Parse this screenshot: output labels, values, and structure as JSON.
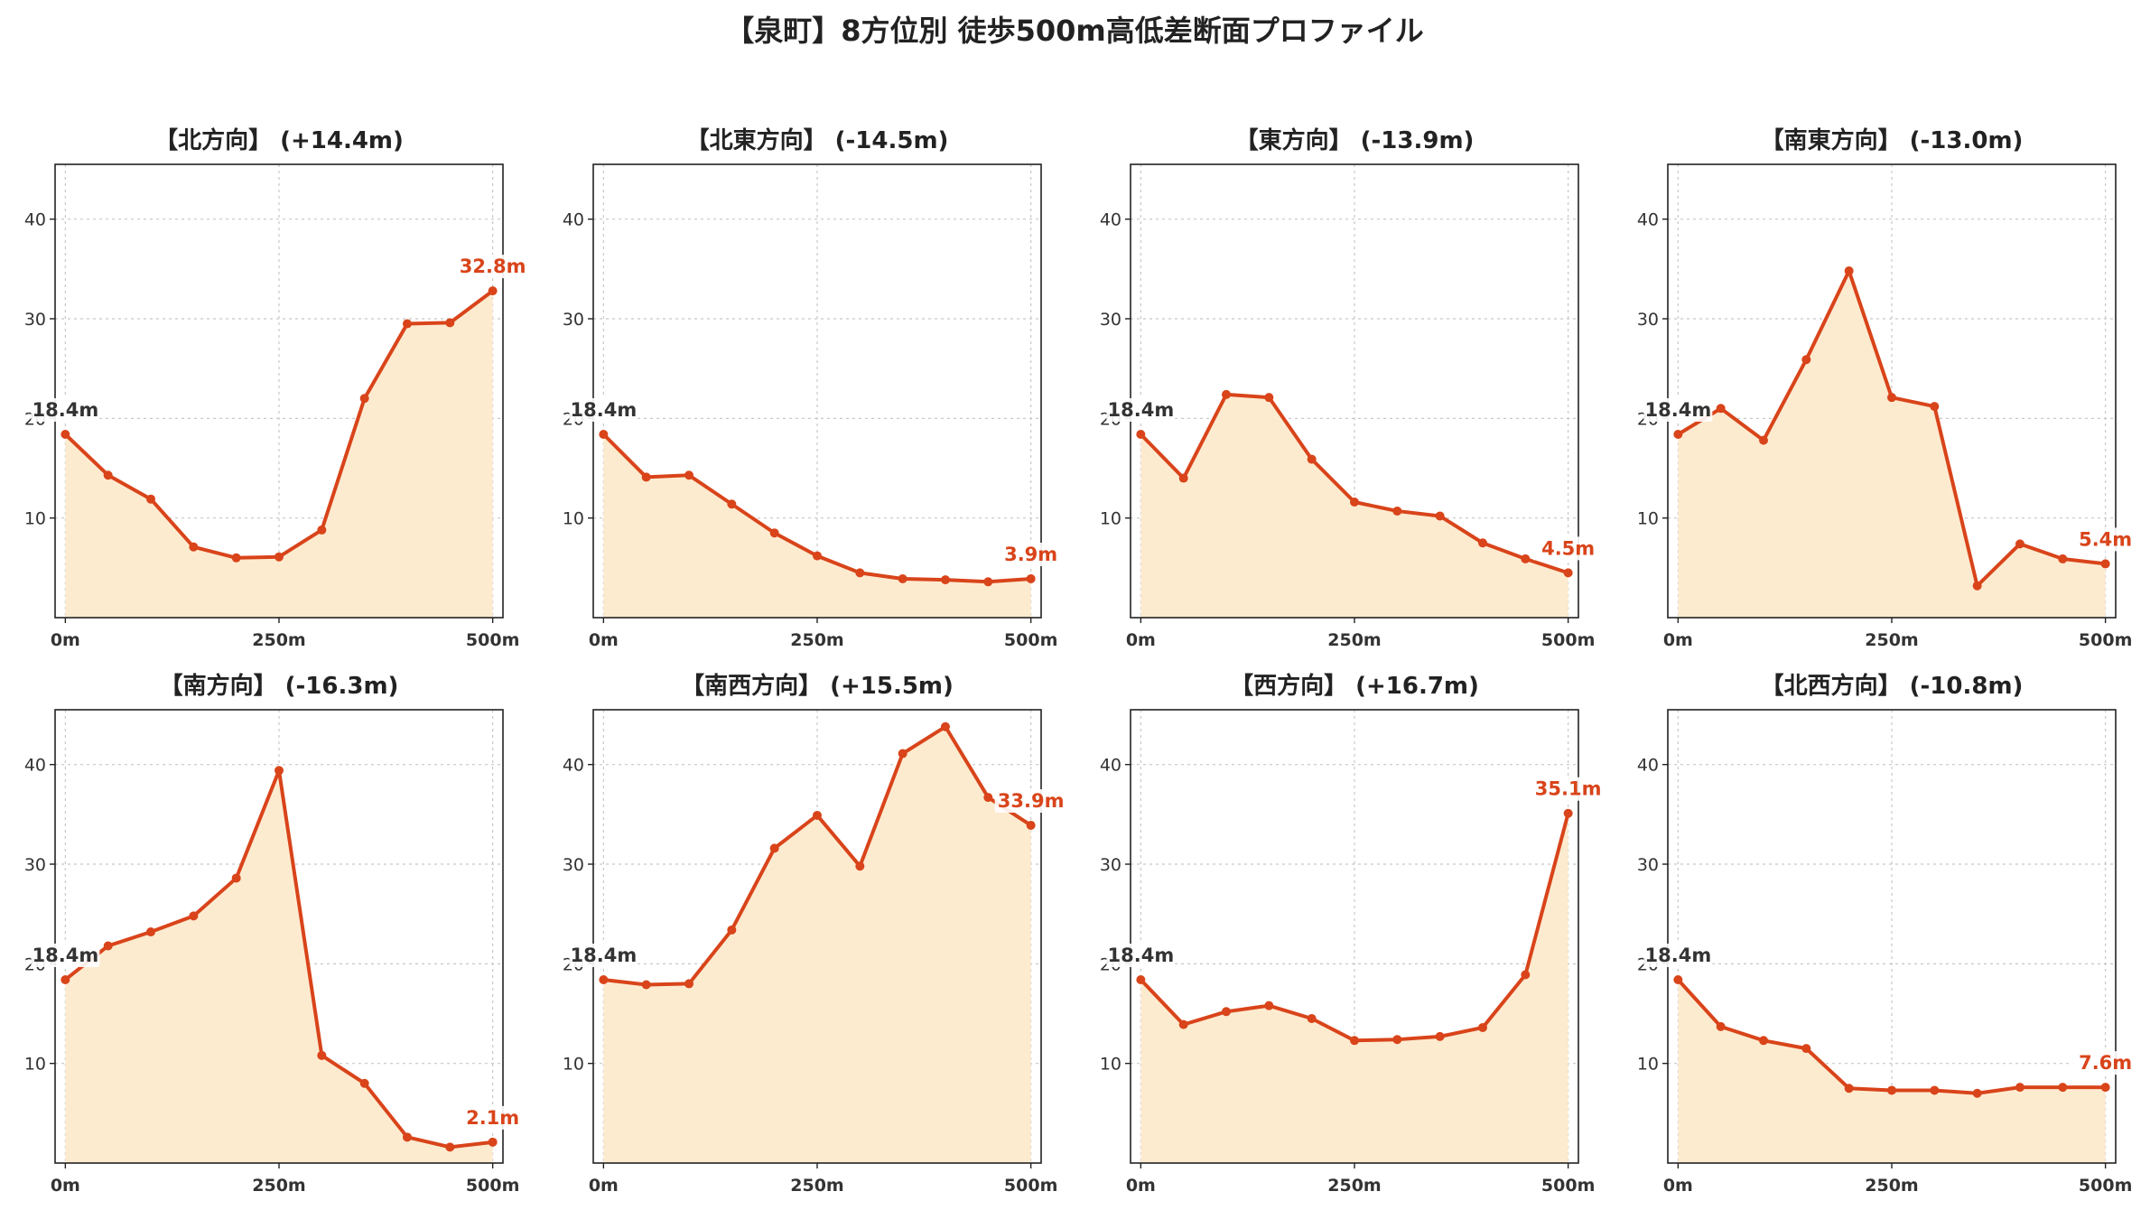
{
  "colors": {
    "line": "#d9441a",
    "fill": "#fdebd0",
    "grid": "#c8c8c8",
    "axis": "#222222",
    "start_label": "#333333",
    "end_label": "#d9441a"
  },
  "chart_data": {
    "type": "area",
    "title": "【泉町】8方位別 徒歩500m高低差断面プロファイル",
    "x": [
      0,
      50,
      100,
      150,
      200,
      250,
      300,
      350,
      400,
      450,
      500
    ],
    "xticks": [
      {
        "v": 0,
        "label": "0m"
      },
      {
        "v": 250,
        "label": "250m"
      },
      {
        "v": 500,
        "label": "500m"
      }
    ],
    "yticks": [
      10,
      20,
      30,
      40
    ],
    "xlim": [
      -12,
      512
    ],
    "ylim": [
      0,
      45.5
    ],
    "grid": true,
    "start_label": "18.4m",
    "panels": [
      {
        "title": "【北方向】 (+14.4m)",
        "values": [
          18.4,
          14.3,
          11.9,
          7.1,
          6.0,
          6.1,
          8.8,
          22.0,
          29.5,
          29.6,
          32.8
        ],
        "end_label": "32.8m"
      },
      {
        "title": "【北東方向】 (-14.5m)",
        "values": [
          18.4,
          14.1,
          14.3,
          11.4,
          8.5,
          6.2,
          4.5,
          3.9,
          3.8,
          3.6,
          3.9
        ],
        "end_label": "3.9m"
      },
      {
        "title": "【東方向】 (-13.9m)",
        "values": [
          18.4,
          14.0,
          22.4,
          22.1,
          15.9,
          11.6,
          10.7,
          10.2,
          7.5,
          5.9,
          4.5
        ],
        "end_label": "4.5m"
      },
      {
        "title": "【南東方向】 (-13.0m)",
        "values": [
          18.4,
          21.0,
          17.8,
          25.9,
          34.8,
          22.1,
          21.2,
          3.2,
          7.4,
          5.9,
          5.4
        ],
        "end_label": "5.4m"
      },
      {
        "title": "【南方向】 (-16.3m)",
        "values": [
          18.4,
          21.8,
          23.2,
          24.8,
          28.6,
          39.4,
          10.8,
          8.0,
          2.6,
          1.6,
          2.1
        ],
        "end_label": "2.1m"
      },
      {
        "title": "【南西方向】 (+15.5m)",
        "values": [
          18.4,
          17.9,
          18.0,
          23.4,
          31.6,
          34.9,
          29.8,
          41.1,
          43.8,
          36.7,
          33.9
        ],
        "end_label": "33.9m"
      },
      {
        "title": "【西方向】 (+16.7m)",
        "values": [
          18.4,
          13.9,
          15.2,
          15.8,
          14.5,
          12.3,
          12.4,
          12.7,
          13.6,
          18.9,
          35.1
        ],
        "end_label": "35.1m"
      },
      {
        "title": "【北西方向】 (-10.8m)",
        "values": [
          18.4,
          13.7,
          12.3,
          11.5,
          7.5,
          7.3,
          7.3,
          7.0,
          7.6,
          7.6,
          7.6
        ],
        "end_label": "7.6m"
      }
    ]
  }
}
